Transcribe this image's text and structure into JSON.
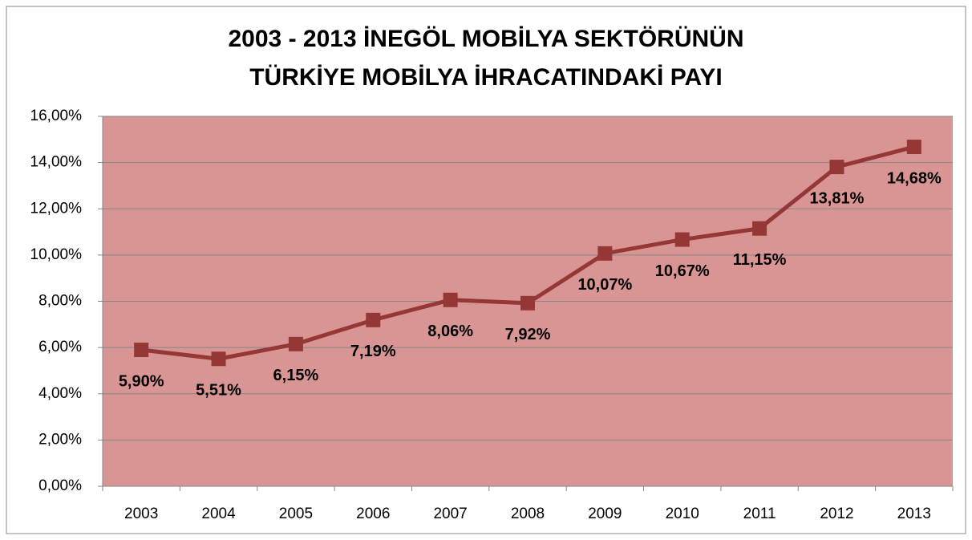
{
  "chart_data": {
    "type": "line",
    "title": [
      "2003 - 2013 İNEGÖL MOBİLYA SEKTÖRÜNÜN",
      "TÜRKİYE MOBİLYA İHRACATINDAKİ PAYI"
    ],
    "categories": [
      "2003",
      "2004",
      "2005",
      "2006",
      "2007",
      "2008",
      "2009",
      "2010",
      "2011",
      "2012",
      "2013"
    ],
    "series": [
      {
        "color": "#953735",
        "values": [
          5.9,
          5.51,
          6.15,
          7.19,
          8.06,
          7.92,
          10.07,
          10.67,
          11.15,
          13.81,
          14.68
        ],
        "value_labels": [
          "5,90%",
          "5,51%",
          "6,15%",
          "7,19%",
          "8,06%",
          "7,92%",
          "10,07%",
          "10,67%",
          "11,15%",
          "13,81%",
          "14,68%"
        ]
      }
    ],
    "ylim": [
      0,
      16
    ],
    "yticks": [
      {
        "value": 0,
        "label": "0,00%"
      },
      {
        "value": 2,
        "label": "2,00%"
      },
      {
        "value": 4,
        "label": "4,00%"
      },
      {
        "value": 6,
        "label": "6,00%"
      },
      {
        "value": 8,
        "label": "8,00%"
      },
      {
        "value": 10,
        "label": "10,00%"
      },
      {
        "value": 12,
        "label": "12,00%"
      },
      {
        "value": 14,
        "label": "14,00%"
      },
      {
        "value": 16,
        "label": "16,00%"
      }
    ],
    "grid": true,
    "plot_background": "#d99594"
  }
}
